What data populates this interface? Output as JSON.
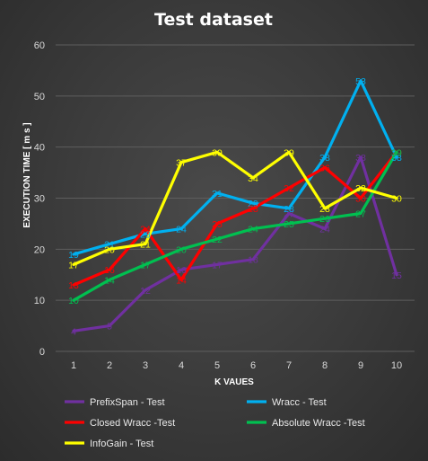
{
  "chart_data": {
    "type": "line",
    "title": "Test dataset",
    "xlabel": "K VAUES",
    "ylabel": "EXECUTION TIME  [ m s ]",
    "x": [
      1,
      2,
      3,
      4,
      5,
      6,
      7,
      8,
      9,
      10
    ],
    "ylim": [
      0,
      60
    ],
    "yticks": [
      0,
      10,
      20,
      30,
      40,
      50,
      60
    ],
    "grid": true,
    "legend": "bottom",
    "series": [
      {
        "name": "PrefixSpan - Test",
        "color": "#7030a0",
        "values": [
          4,
          5,
          12,
          16,
          17,
          18,
          27,
          24,
          38,
          15
        ]
      },
      {
        "name": "Wracc - Test",
        "color": "#00b0f0",
        "values": [
          19,
          21,
          23,
          24,
          31,
          29,
          28,
          38,
          53,
          38
        ]
      },
      {
        "name": "Closed Wracc -Test",
        "color": "#ff0000",
        "values": [
          13,
          16,
          24,
          14,
          25,
          28,
          32,
          36,
          30,
          39
        ]
      },
      {
        "name": "Absolute Wracc -Test",
        "color": "#00c050",
        "values": [
          10,
          14,
          17,
          20,
          22,
          24,
          25,
          26,
          27,
          39
        ]
      },
      {
        "name": "InfoGain - Test",
        "color": "#ffff00",
        "values": [
          17,
          20,
          21,
          37,
          39,
          34,
          39,
          28,
          32,
          30
        ]
      }
    ]
  }
}
